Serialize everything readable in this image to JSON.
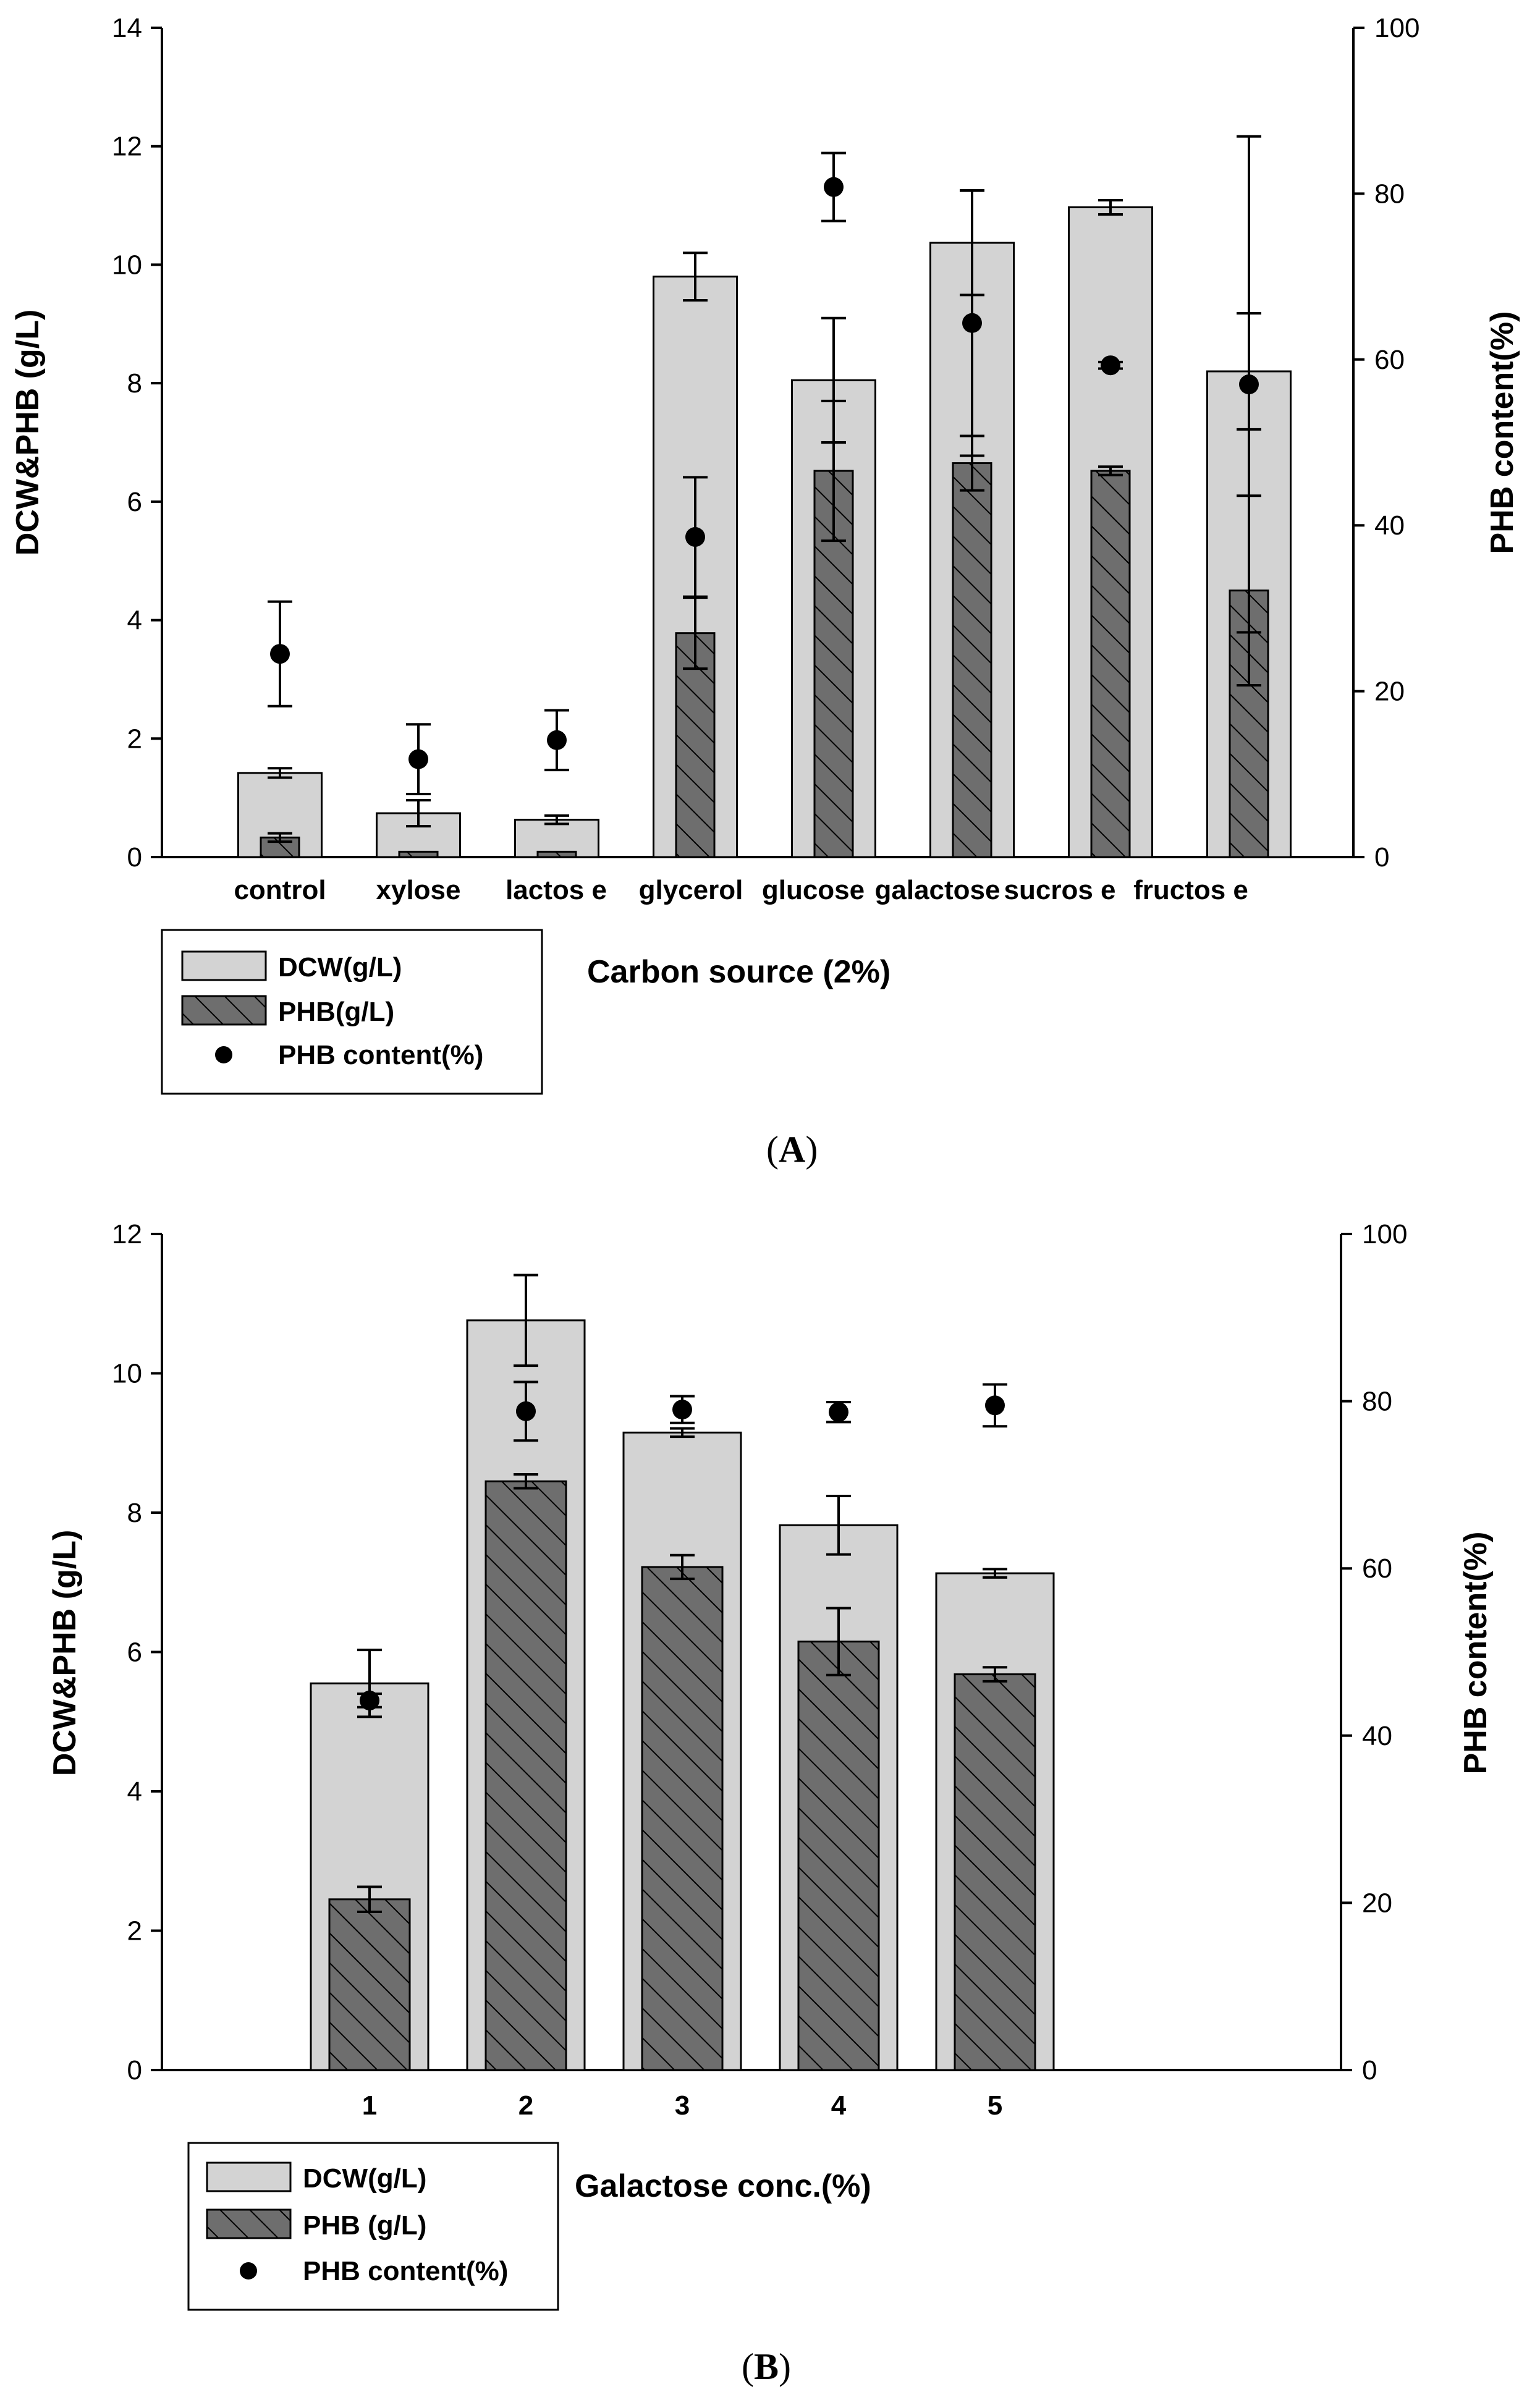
{
  "colors": {
    "dcw_bar": "#d3d3d3",
    "phb_bar": "#6e6e6e",
    "point": "#000000"
  },
  "chart_data": [
    {
      "type": "bar",
      "panel_label": "A",
      "title": "",
      "xlabel": "Carbon source (2%)",
      "ylabel": "DCW&PHB (g/L)",
      "y2label": "PHB content(%)",
      "ylim": [
        0,
        14
      ],
      "y2lim": [
        0,
        100
      ],
      "yticks": [
        "0",
        "2",
        "4",
        "6",
        "8",
        "10",
        "12",
        "14"
      ],
      "y2ticks": [
        "0",
        "20",
        "40",
        "60",
        "80",
        "100"
      ],
      "categories": [
        "control",
        "xylose",
        "lactos e",
        "glycerol",
        "glucose",
        "galactose",
        "sucros e",
        "fructos e"
      ],
      "series": [
        {
          "name": "DCW(g/L)",
          "kind": "bar",
          "axis": "left",
          "values": [
            1.42,
            0.74,
            0.63,
            9.8,
            8.05,
            10.37,
            10.97,
            8.2
          ],
          "errors": [
            0.08,
            0.22,
            0.07,
            0.4,
            1.05,
            0.88,
            0.12,
            0.98
          ]
        },
        {
          "name": "PHB(g/L)",
          "kind": "hatched-bar",
          "axis": "left",
          "values": [
            0.33,
            0.09,
            0.09,
            3.78,
            6.52,
            6.65,
            6.52,
            4.5
          ],
          "errors": [
            0.07,
            0.0,
            0.0,
            0.6,
            1.18,
            0.46,
            0.07,
            1.6
          ]
        },
        {
          "name": "PHB content(%)",
          "kind": "point",
          "axis": "right",
          "values": [
            24.5,
            11.8,
            14.1,
            38.6,
            80.8,
            64.4,
            59.3,
            57.0
          ],
          "errors": [
            6.3,
            4.2,
            3.6,
            7.2,
            4.1,
            16.0,
            0.4,
            29.9
          ]
        }
      ],
      "legend": [
        "DCW(g/L)",
        "PHB(g/L)",
        "PHB content(%)"
      ],
      "legend_position": "below-left"
    },
    {
      "type": "bar",
      "panel_label": "B",
      "title": "",
      "xlabel": "Galactose conc.(%)",
      "ylabel": "DCW&PHB (g/L)",
      "y2label": "PHB content(%)",
      "ylim": [
        0,
        12
      ],
      "y2lim": [
        0,
        100
      ],
      "yticks": [
        "0",
        "2",
        "4",
        "6",
        "8",
        "10",
        "12"
      ],
      "y2ticks": [
        "0",
        "20",
        "40",
        "60",
        "80",
        "100"
      ],
      "categories": [
        "1",
        "2",
        "3",
        "4",
        "5"
      ],
      "series": [
        {
          "name": "DCW(g/L)",
          "kind": "bar",
          "axis": "left",
          "values": [
            5.55,
            10.76,
            9.15,
            7.82,
            7.13
          ],
          "errors": [
            0.48,
            0.65,
            0.06,
            0.42,
            0.06
          ]
        },
        {
          "name": "PHB (g/L)",
          "kind": "hatched-bar",
          "axis": "left",
          "values": [
            2.45,
            8.45,
            7.22,
            6.15,
            5.68
          ],
          "errors": [
            0.18,
            0.1,
            0.17,
            0.48,
            0.1
          ]
        },
        {
          "name": "PHB content(%)",
          "kind": "point",
          "axis": "right",
          "values": [
            44.2,
            78.8,
            79.0,
            78.7,
            79.5
          ],
          "errors": [
            0.8,
            3.5,
            1.6,
            1.2,
            2.5
          ]
        }
      ],
      "legend": [
        "DCW(g/L)",
        "PHB (g/L)",
        "PHB content(%)"
      ],
      "legend_position": "below-left"
    }
  ]
}
